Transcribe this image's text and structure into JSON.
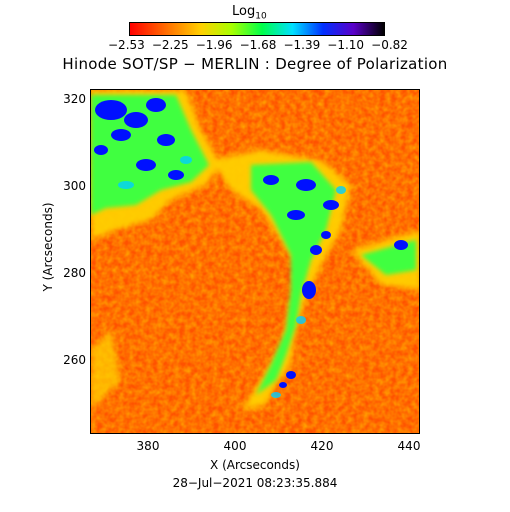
{
  "colorbar": {
    "title": "Log",
    "title_sub": "10",
    "ticks": [
      "−2.53",
      "−2.25",
      "−1.96",
      "−1.68",
      "−1.39",
      "−1.10",
      "−0.82"
    ]
  },
  "title": "Hinode SOT/SP − MERLIN : Degree of Polarization",
  "axes": {
    "xlabel": "X (Arcseconds)",
    "ylabel": "Y (Arcseconds)",
    "xticks": [
      "380",
      "400",
      "420",
      "440"
    ],
    "yticks": [
      "320",
      "300",
      "280",
      "260"
    ]
  },
  "timestamp": "28−Jul−2021 08:23:35.884",
  "colors": {
    "background_field": "#ff5a00",
    "network_high": "#0000ff",
    "network_mid": "#00ff80",
    "network_low": "#ffd000"
  }
}
